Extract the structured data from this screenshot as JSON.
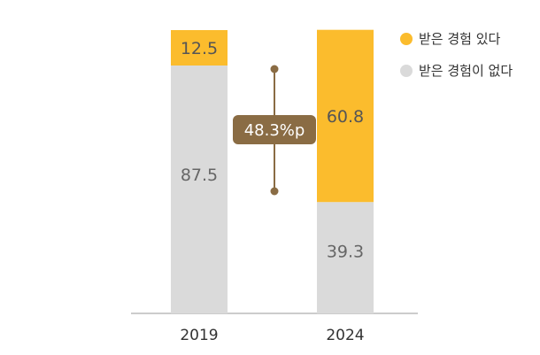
{
  "chart_data": {
    "type": "bar",
    "stacked": true,
    "categories": [
      "2019",
      "2024"
    ],
    "series": [
      {
        "name": "받은 경험이 없다",
        "values": [
          87.5,
          39.3
        ]
      },
      {
        "name": "받은 경험 있다",
        "values": [
          12.5,
          60.8
        ]
      }
    ],
    "value_labels": {
      "2019": {
        "none": "87.5",
        "have": "12.5"
      },
      "2024": {
        "none": "39.3",
        "have": "60.8"
      }
    },
    "annotation": "48.3%p",
    "ylim": [
      0,
      100
    ],
    "grid": false,
    "legend_position": "top-right",
    "colors": {
      "have": "#FBBC2D",
      "none": "#DADADA",
      "annotation": "#8A6C44",
      "axis": "#BBBBBB"
    }
  }
}
